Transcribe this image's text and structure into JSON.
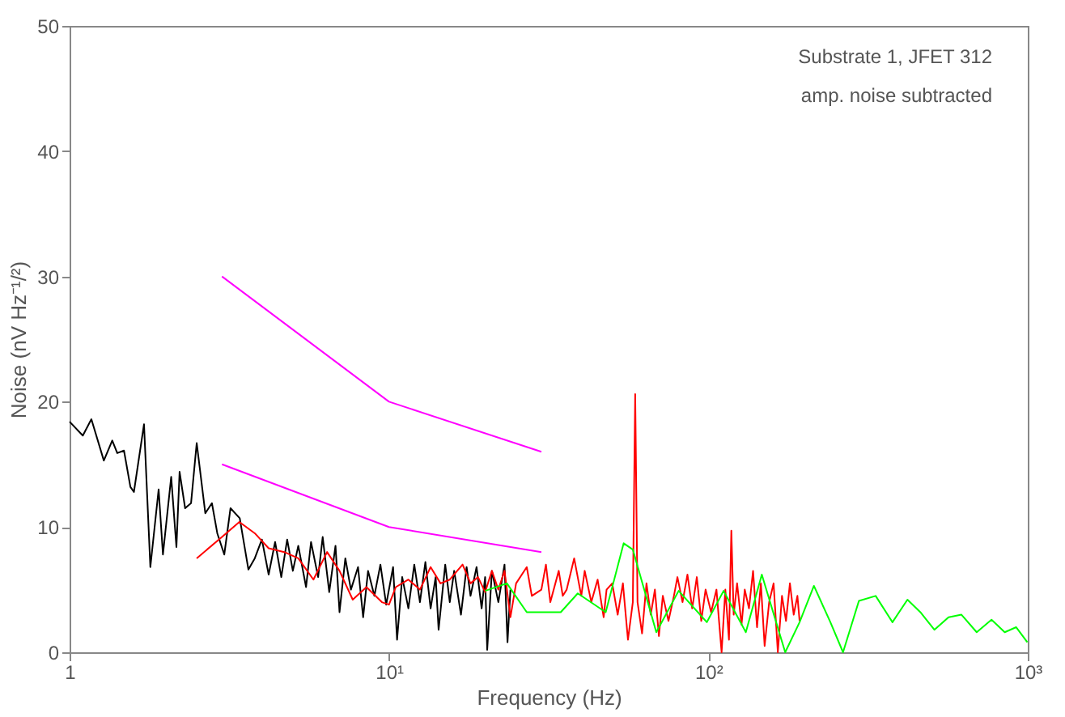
{
  "chart_data": {
    "type": "line",
    "xlabel": "Frequency (Hz)",
    "ylabel": "Noise (nV Hz⁻¹/²)",
    "annotations": [
      "Substrate 1, JFET 312",
      "amp. noise subtracted"
    ],
    "xlim": [
      1,
      1000
    ],
    "ylim": [
      0,
      50
    ],
    "log": "x",
    "grid": false,
    "marker": "none",
    "line_style": "solid",
    "xticks": [
      1,
      {
        "value": 10,
        "label": "10¹"
      },
      {
        "value": 100,
        "label": "10²"
      },
      {
        "value": 1000,
        "label": "10³"
      }
    ],
    "yticks": [
      0,
      10,
      20,
      30,
      40,
      50
    ],
    "series": [
      {
        "color": "#000000",
        "x": [
          1.0,
          1.1,
          1.17,
          1.28,
          1.36,
          1.41,
          1.48,
          1.55,
          1.59,
          1.71,
          1.79,
          1.9,
          1.96,
          2.08,
          2.16,
          2.21,
          2.3,
          2.4,
          2.5,
          2.66,
          2.79,
          2.9,
          3.05,
          3.19,
          3.41,
          3.63,
          3.8,
          4.0,
          4.2,
          4.4,
          4.6,
          4.8,
          5.0,
          5.2,
          5.5,
          5.7,
          6.0,
          6.2,
          6.5,
          6.8,
          7.0,
          7.3,
          7.6,
          8.0,
          8.3,
          8.6,
          9.0,
          9.4,
          9.8,
          10.3,
          10.6,
          11,
          11.5,
          12,
          12.5,
          13,
          13.5,
          14,
          14.3,
          15,
          15.5,
          16,
          16.8,
          17.5,
          18,
          18.8,
          19.5,
          20,
          20.3,
          21,
          22,
          23,
          23.5,
          24
        ],
        "values": [
          18.4,
          17.3,
          18.6,
          15.3,
          16.9,
          15.9,
          16.1,
          13.2,
          12.8,
          18.2,
          6.8,
          13,
          7.8,
          14,
          8.4,
          14.4,
          11.5,
          11.9,
          16.7,
          11.1,
          11.9,
          9.5,
          7.8,
          11.5,
          10.7,
          6.6,
          7.5,
          9.0,
          6.2,
          8.8,
          6.0,
          9.0,
          6.5,
          8.5,
          5.2,
          8.8,
          6.0,
          9.2,
          4.8,
          8.5,
          3.2,
          7.5,
          5.0,
          6.8,
          2.8,
          6.5,
          4.5,
          7.0,
          3.8,
          6.8,
          1.0,
          6.0,
          3.5,
          7.0,
          4.0,
          7.2,
          3.5,
          6.0,
          1.8,
          7.0,
          4.0,
          6.5,
          3.0,
          6.8,
          4.5,
          6.8,
          3.5,
          6.0,
          0.2,
          6.5,
          4.0,
          7.0,
          0.8,
          5.0
        ]
      },
      {
        "color": "#ff0000",
        "x": [
          2.5,
          3.0,
          3.4,
          3.8,
          4.2,
          4.7,
          5.2,
          5.8,
          6.4,
          7,
          7.7,
          8.5,
          9.5,
          10,
          10.5,
          11.5,
          12.5,
          13.5,
          14.5,
          15.5,
          17,
          18,
          19,
          20,
          21,
          22,
          23,
          24,
          25,
          27,
          28,
          30,
          31,
          32,
          34,
          35,
          36,
          38,
          40,
          41,
          43,
          45,
          47,
          48,
          50,
          52,
          54,
          56,
          58,
          59,
          60,
          62,
          64,
          66,
          68,
          70,
          72,
          75,
          78,
          80,
          83,
          86,
          89,
          92,
          95,
          98,
          102,
          106,
          110,
          113,
          116,
          118,
          120,
          123,
          127,
          130,
          134,
          138,
          142,
          146,
          150,
          155,
          160,
          165,
          170,
          175,
          180,
          185,
          190,
          193
        ],
        "values": [
          7.5,
          9.2,
          10.4,
          9.5,
          8.3,
          8.0,
          7.5,
          5.8,
          8.0,
          6.5,
          4.2,
          5.2,
          4.0,
          3.8,
          5.2,
          5.8,
          5.0,
          6.8,
          5.5,
          5.8,
          7.0,
          5.5,
          6.0,
          4.8,
          6.5,
          5.0,
          6.5,
          2.8,
          5.5,
          6.8,
          4.5,
          5.0,
          7.0,
          4.0,
          6.5,
          4.5,
          5.0,
          7.5,
          4.5,
          6.5,
          4.0,
          5.8,
          2.8,
          5.0,
          5.5,
          3.0,
          5.5,
          1.0,
          4.0,
          20.6,
          4.0,
          1.5,
          5.5,
          3.0,
          5.0,
          1.3,
          4.5,
          2.5,
          4.5,
          6.0,
          4.0,
          6.2,
          3.5,
          6.0,
          2.5,
          5.0,
          3.2,
          5.0,
          0.0,
          5.0,
          1.0,
          9.7,
          3.0,
          5.5,
          2.2,
          5.0,
          3.5,
          6.5,
          2.0,
          5.5,
          0.5,
          4.0,
          5.5,
          0.0,
          4.5,
          2.5,
          5.5,
          3.0,
          4.5,
          2.5
        ]
      },
      {
        "color": "#00ff00",
        "x": [
          20,
          23.4,
          27,
          34.5,
          39,
          47.7,
          54.3,
          58,
          68.7,
          80.7,
          98.9,
          111.6,
          131,
          147,
          174,
          193,
          214,
          241,
          264,
          296,
          334,
          377,
          420,
          461,
          510,
          565,
          620,
          692,
          770,
          847,
          920,
          997
        ],
        "values": [
          4.9,
          5.5,
          3.2,
          3.2,
          4.7,
          3.2,
          8.7,
          8.2,
          1.6,
          4.9,
          2.4,
          4.9,
          1.6,
          6.2,
          0.0,
          2.4,
          5.3,
          2.4,
          0.0,
          4.1,
          4.5,
          2.4,
          4.2,
          3.2,
          1.8,
          2.8,
          3.0,
          1.6,
          2.6,
          1.6,
          2.0,
          0.8
        ]
      },
      {
        "color": "#ff00ff",
        "x": [
          3,
          10,
          30
        ],
        "values": [
          30,
          20,
          16
        ]
      },
      {
        "color": "#ff00ff",
        "x": [
          3,
          10,
          30
        ],
        "values": [
          15,
          10,
          8
        ]
      }
    ]
  }
}
